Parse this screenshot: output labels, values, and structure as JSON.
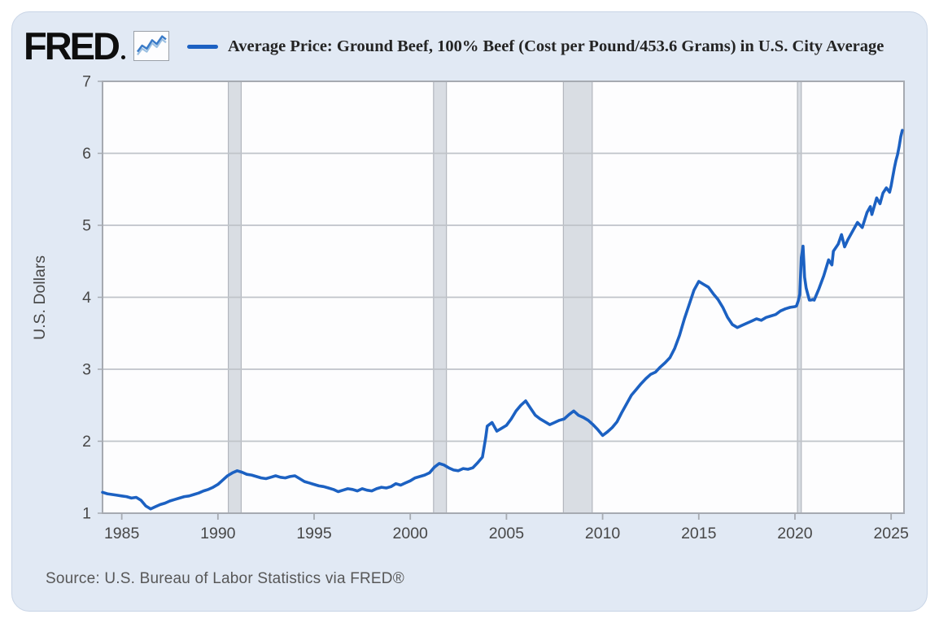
{
  "header": {
    "logo_text": "FRED",
    "legend_swatch_color": "#1c61c2"
  },
  "source": "Source: U.S. Bureau of Labor Statistics via FRED®",
  "chart_data": {
    "type": "line",
    "title": "Average Price: Ground Beef, 100% Beef (Cost per Pound/453.6 Grams) in U.S. City Average",
    "xlabel": "",
    "ylabel": "U.S. Dollars",
    "x_range": [
      1984,
      2025.67
    ],
    "y_range": [
      1,
      7
    ],
    "x_ticks": [
      1985,
      1990,
      1995,
      2000,
      2005,
      2010,
      2015,
      2020,
      2025
    ],
    "y_ticks": [
      1,
      2,
      3,
      4,
      5,
      6,
      7
    ],
    "grid": "horizontal",
    "legend_position": "top",
    "recession_bands": [
      [
        1990.54,
        1991.21
      ],
      [
        2001.21,
        2001.88
      ],
      [
        2007.96,
        2009.46
      ],
      [
        2020.13,
        2020.33
      ]
    ],
    "colors": {
      "line": "#1c61c2",
      "plot_bg": "#fdfdfe",
      "plot_border": "#a6aab1",
      "gridline": "#bfc3c9",
      "band_fill": "#d9dde3",
      "band_edge": "#b2b6bd",
      "tick_text": "#474747"
    },
    "series": [
      {
        "name": "Average Price: Ground Beef, 100% Beef (Cost per Pound/453.6 Grams) in U.S. City Average",
        "points": [
          [
            1984.0,
            1.29
          ],
          [
            1984.25,
            1.27
          ],
          [
            1984.5,
            1.26
          ],
          [
            1984.75,
            1.25
          ],
          [
            1985.0,
            1.24
          ],
          [
            1985.25,
            1.23
          ],
          [
            1985.5,
            1.21
          ],
          [
            1985.75,
            1.22
          ],
          [
            1986.0,
            1.18
          ],
          [
            1986.25,
            1.1
          ],
          [
            1986.5,
            1.06
          ],
          [
            1986.75,
            1.09
          ],
          [
            1987.0,
            1.12
          ],
          [
            1987.25,
            1.14
          ],
          [
            1987.5,
            1.17
          ],
          [
            1987.75,
            1.19
          ],
          [
            1988.0,
            1.21
          ],
          [
            1988.25,
            1.23
          ],
          [
            1988.5,
            1.24
          ],
          [
            1988.75,
            1.26
          ],
          [
            1989.0,
            1.28
          ],
          [
            1989.25,
            1.31
          ],
          [
            1989.5,
            1.33
          ],
          [
            1989.75,
            1.36
          ],
          [
            1990.0,
            1.4
          ],
          [
            1990.25,
            1.46
          ],
          [
            1990.5,
            1.52
          ],
          [
            1990.75,
            1.56
          ],
          [
            1991.0,
            1.59
          ],
          [
            1991.25,
            1.57
          ],
          [
            1991.5,
            1.54
          ],
          [
            1991.75,
            1.53
          ],
          [
            1992.0,
            1.51
          ],
          [
            1992.25,
            1.49
          ],
          [
            1992.5,
            1.48
          ],
          [
            1992.75,
            1.5
          ],
          [
            1993.0,
            1.52
          ],
          [
            1993.25,
            1.5
          ],
          [
            1993.5,
            1.49
          ],
          [
            1993.75,
            1.51
          ],
          [
            1994.0,
            1.52
          ],
          [
            1994.25,
            1.48
          ],
          [
            1994.5,
            1.44
          ],
          [
            1994.75,
            1.42
          ],
          [
            1995.0,
            1.4
          ],
          [
            1995.25,
            1.38
          ],
          [
            1995.5,
            1.37
          ],
          [
            1995.75,
            1.35
          ],
          [
            1996.0,
            1.33
          ],
          [
            1996.25,
            1.3
          ],
          [
            1996.5,
            1.32
          ],
          [
            1996.75,
            1.34
          ],
          [
            1997.0,
            1.33
          ],
          [
            1997.25,
            1.31
          ],
          [
            1997.5,
            1.34
          ],
          [
            1997.75,
            1.32
          ],
          [
            1998.0,
            1.31
          ],
          [
            1998.25,
            1.34
          ],
          [
            1998.5,
            1.36
          ],
          [
            1998.75,
            1.35
          ],
          [
            1999.0,
            1.37
          ],
          [
            1999.25,
            1.41
          ],
          [
            1999.5,
            1.39
          ],
          [
            1999.75,
            1.42
          ],
          [
            2000.0,
            1.45
          ],
          [
            2000.25,
            1.49
          ],
          [
            2000.5,
            1.51
          ],
          [
            2000.75,
            1.53
          ],
          [
            2001.0,
            1.56
          ],
          [
            2001.25,
            1.64
          ],
          [
            2001.5,
            1.69
          ],
          [
            2001.75,
            1.67
          ],
          [
            2002.0,
            1.63
          ],
          [
            2002.25,
            1.6
          ],
          [
            2002.5,
            1.59
          ],
          [
            2002.75,
            1.62
          ],
          [
            2003.0,
            1.61
          ],
          [
            2003.25,
            1.63
          ],
          [
            2003.5,
            1.7
          ],
          [
            2003.75,
            1.78
          ],
          [
            2003.92,
            2.05
          ],
          [
            2004.0,
            2.21
          ],
          [
            2004.25,
            2.26
          ],
          [
            2004.5,
            2.14
          ],
          [
            2004.75,
            2.18
          ],
          [
            2005.0,
            2.22
          ],
          [
            2005.25,
            2.31
          ],
          [
            2005.5,
            2.42
          ],
          [
            2005.75,
            2.5
          ],
          [
            2006.0,
            2.56
          ],
          [
            2006.25,
            2.46
          ],
          [
            2006.5,
            2.36
          ],
          [
            2006.75,
            2.31
          ],
          [
            2007.0,
            2.27
          ],
          [
            2007.25,
            2.23
          ],
          [
            2007.5,
            2.26
          ],
          [
            2007.75,
            2.29
          ],
          [
            2008.0,
            2.31
          ],
          [
            2008.25,
            2.37
          ],
          [
            2008.5,
            2.42
          ],
          [
            2008.75,
            2.36
          ],
          [
            2009.0,
            2.33
          ],
          [
            2009.25,
            2.29
          ],
          [
            2009.5,
            2.23
          ],
          [
            2009.75,
            2.16
          ],
          [
            2010.0,
            2.08
          ],
          [
            2010.25,
            2.13
          ],
          [
            2010.5,
            2.19
          ],
          [
            2010.75,
            2.27
          ],
          [
            2011.0,
            2.4
          ],
          [
            2011.25,
            2.52
          ],
          [
            2011.5,
            2.64
          ],
          [
            2011.75,
            2.72
          ],
          [
            2012.0,
            2.8
          ],
          [
            2012.25,
            2.87
          ],
          [
            2012.5,
            2.93
          ],
          [
            2012.75,
            2.96
          ],
          [
            2013.0,
            3.03
          ],
          [
            2013.25,
            3.09
          ],
          [
            2013.5,
            3.16
          ],
          [
            2013.75,
            3.29
          ],
          [
            2014.0,
            3.47
          ],
          [
            2014.25,
            3.7
          ],
          [
            2014.5,
            3.9
          ],
          [
            2014.75,
            4.1
          ],
          [
            2015.0,
            4.22
          ],
          [
            2015.25,
            4.18
          ],
          [
            2015.5,
            4.14
          ],
          [
            2015.75,
            4.05
          ],
          [
            2016.0,
            3.97
          ],
          [
            2016.25,
            3.86
          ],
          [
            2016.5,
            3.72
          ],
          [
            2016.75,
            3.62
          ],
          [
            2017.0,
            3.58
          ],
          [
            2017.25,
            3.61
          ],
          [
            2017.5,
            3.64
          ],
          [
            2017.75,
            3.67
          ],
          [
            2018.0,
            3.7
          ],
          [
            2018.25,
            3.68
          ],
          [
            2018.5,
            3.72
          ],
          [
            2018.75,
            3.74
          ],
          [
            2019.0,
            3.76
          ],
          [
            2019.25,
            3.81
          ],
          [
            2019.5,
            3.84
          ],
          [
            2019.75,
            3.86
          ],
          [
            2020.0,
            3.87
          ],
          [
            2020.08,
            3.88
          ],
          [
            2020.17,
            3.95
          ],
          [
            2020.25,
            4.04
          ],
          [
            2020.33,
            4.55
          ],
          [
            2020.42,
            4.71
          ],
          [
            2020.5,
            4.28
          ],
          [
            2020.58,
            4.13
          ],
          [
            2020.67,
            4.04
          ],
          [
            2020.75,
            3.96
          ],
          [
            2020.83,
            3.96
          ],
          [
            2020.92,
            3.97
          ],
          [
            2021.0,
            3.96
          ],
          [
            2021.25,
            4.12
          ],
          [
            2021.5,
            4.3
          ],
          [
            2021.75,
            4.52
          ],
          [
            2021.92,
            4.45
          ],
          [
            2022.0,
            4.64
          ],
          [
            2022.25,
            4.74
          ],
          [
            2022.42,
            4.87
          ],
          [
            2022.58,
            4.7
          ],
          [
            2022.75,
            4.8
          ],
          [
            2023.0,
            4.92
          ],
          [
            2023.25,
            5.04
          ],
          [
            2023.5,
            4.97
          ],
          [
            2023.75,
            5.18
          ],
          [
            2023.92,
            5.26
          ],
          [
            2024.0,
            5.15
          ],
          [
            2024.25,
            5.38
          ],
          [
            2024.42,
            5.3
          ],
          [
            2024.58,
            5.45
          ],
          [
            2024.75,
            5.52
          ],
          [
            2024.92,
            5.46
          ],
          [
            2025.0,
            5.55
          ],
          [
            2025.08,
            5.67
          ],
          [
            2025.17,
            5.8
          ],
          [
            2025.25,
            5.9
          ],
          [
            2025.33,
            5.98
          ],
          [
            2025.42,
            6.1
          ],
          [
            2025.5,
            6.23
          ],
          [
            2025.58,
            6.32
          ]
        ]
      }
    ]
  }
}
